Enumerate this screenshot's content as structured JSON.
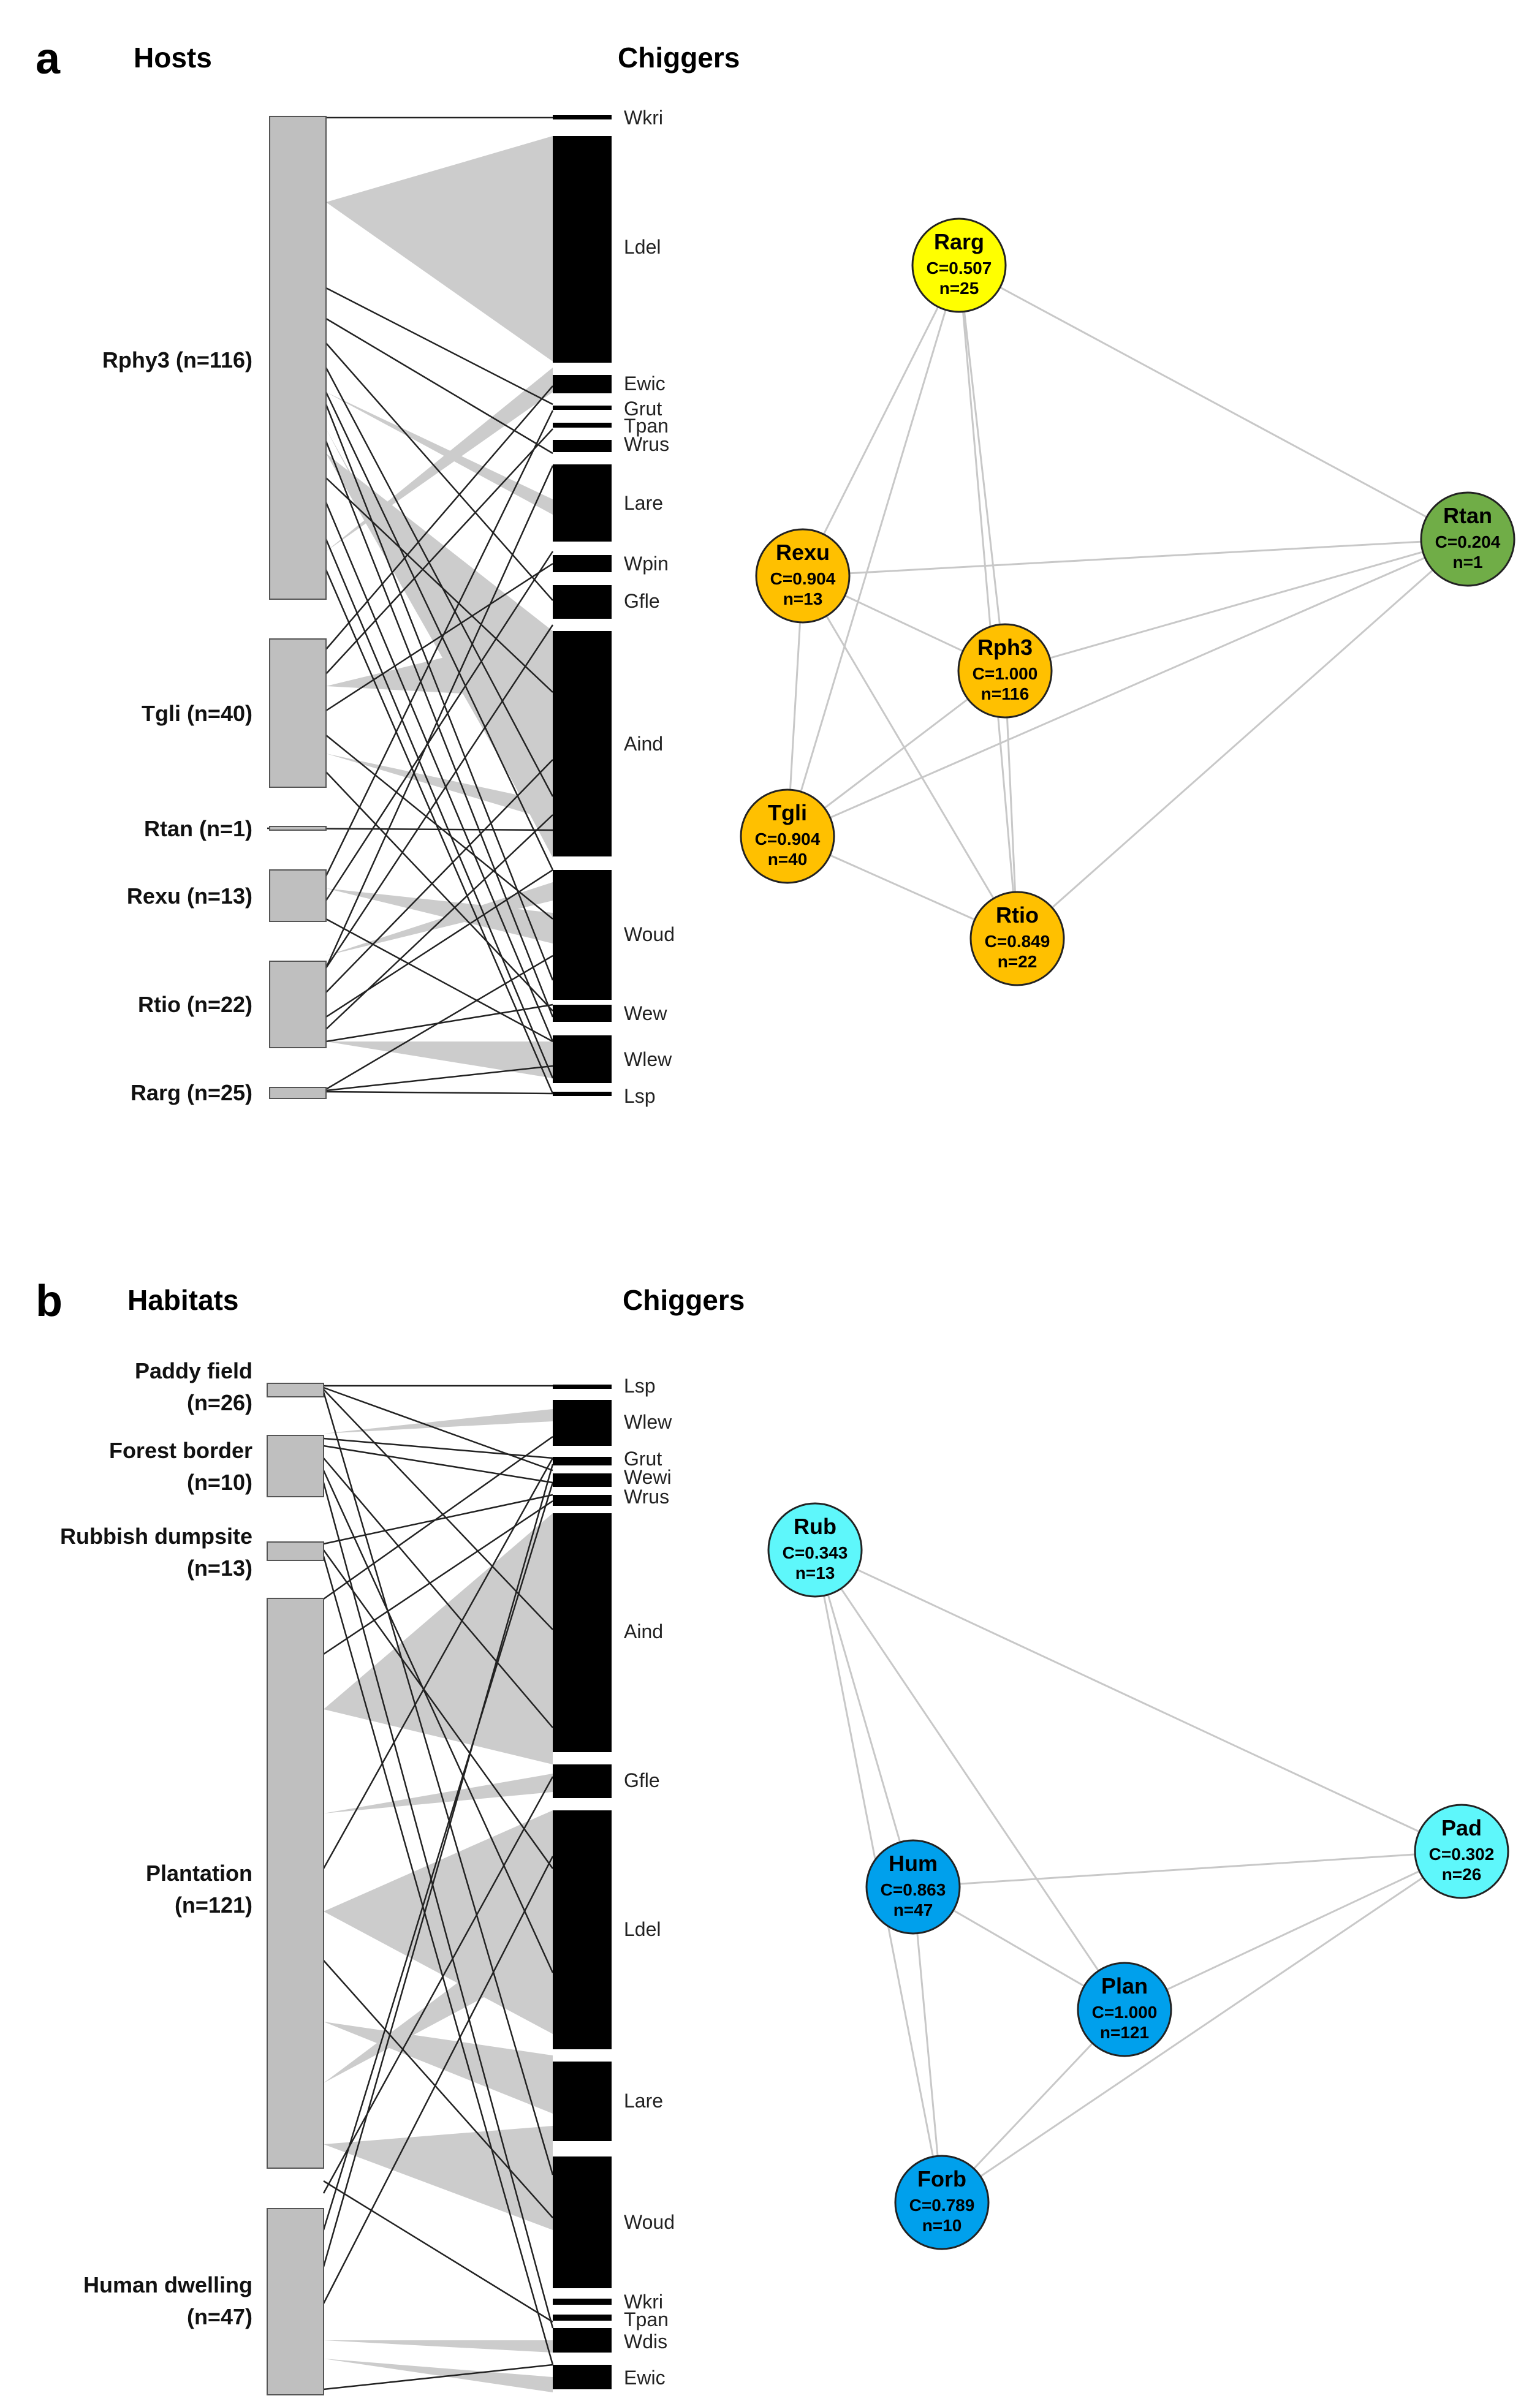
{
  "panel_a": {
    "letter": "a",
    "left_title": "Hosts",
    "right_title": "Chiggers",
    "left_labels": [
      "Rphy3 (n=116)",
      "Tgli (n=40)",
      "Rtan (n=1)",
      "Rexu (n=13)",
      "Rtio (n=22)",
      "Rarg (n=25)"
    ],
    "right_labels": [
      "Wkri",
      "Ldel",
      "Ewic",
      "Grut",
      "Tpan",
      "Wrus",
      "Lare",
      "Wpin",
      "Gfle",
      "Aind",
      "Woud",
      "Wew",
      "Wlew",
      "Lsp"
    ],
    "nodes": [
      {
        "name": "Rarg",
        "c": "C=0.507",
        "n": "n=25"
      },
      {
        "name": "Rtan",
        "c": "C=0.204",
        "n": "n=1"
      },
      {
        "name": "Rexu",
        "c": "C=0.904",
        "n": "n=13"
      },
      {
        "name": "Rph3",
        "c": "C=1.000",
        "n": "n=116"
      },
      {
        "name": "Tgli",
        "c": "C=0.904",
        "n": "n=40"
      },
      {
        "name": "Rtio",
        "c": "C=0.849",
        "n": "n=22"
      }
    ]
  },
  "panel_b": {
    "letter": "b",
    "left_title": "Habitats",
    "right_title": "Chiggers",
    "left_labels": [
      {
        "line1": "Paddy field",
        "line2": "(n=26)"
      },
      {
        "line1": "Forest border",
        "line2": "(n=10)"
      },
      {
        "line1": "Rubbish dumpsite",
        "line2": "(n=13)"
      },
      {
        "line1": "Plantation",
        "line2": "(n=121)"
      },
      {
        "line1": "Human dwelling",
        "line2": "(n=47)"
      }
    ],
    "right_labels": [
      "Lsp",
      "Wlew",
      "Grut",
      "Wewi",
      "Wrus",
      "Aind",
      "Gfle",
      "Ldel",
      "Lare",
      "Woud",
      "Wkri",
      "Tpan",
      "Wdis",
      "Ewic"
    ],
    "nodes": [
      {
        "name": "Rub",
        "c": "C=0.343",
        "n": "n=13"
      },
      {
        "name": "Pad",
        "c": "C=0.302",
        "n": "n=26"
      },
      {
        "name": "Hum",
        "c": "C=0.863",
        "n": "n=47"
      },
      {
        "name": "Plan",
        "c": "C=1.000",
        "n": "n=121"
      },
      {
        "name": "Forb",
        "c": "C=0.789",
        "n": "n=10"
      }
    ]
  },
  "colors": {
    "bar_grey": "#bfbfbf",
    "chigger_black": "#000000",
    "link_fill": "#cccccc",
    "edge": "#c8c8c8",
    "yellow": "#ffff00",
    "orange": "#ffc000",
    "green": "#70ad47",
    "cyan": "#5ef7fb",
    "blue": "#00a0ec"
  }
}
